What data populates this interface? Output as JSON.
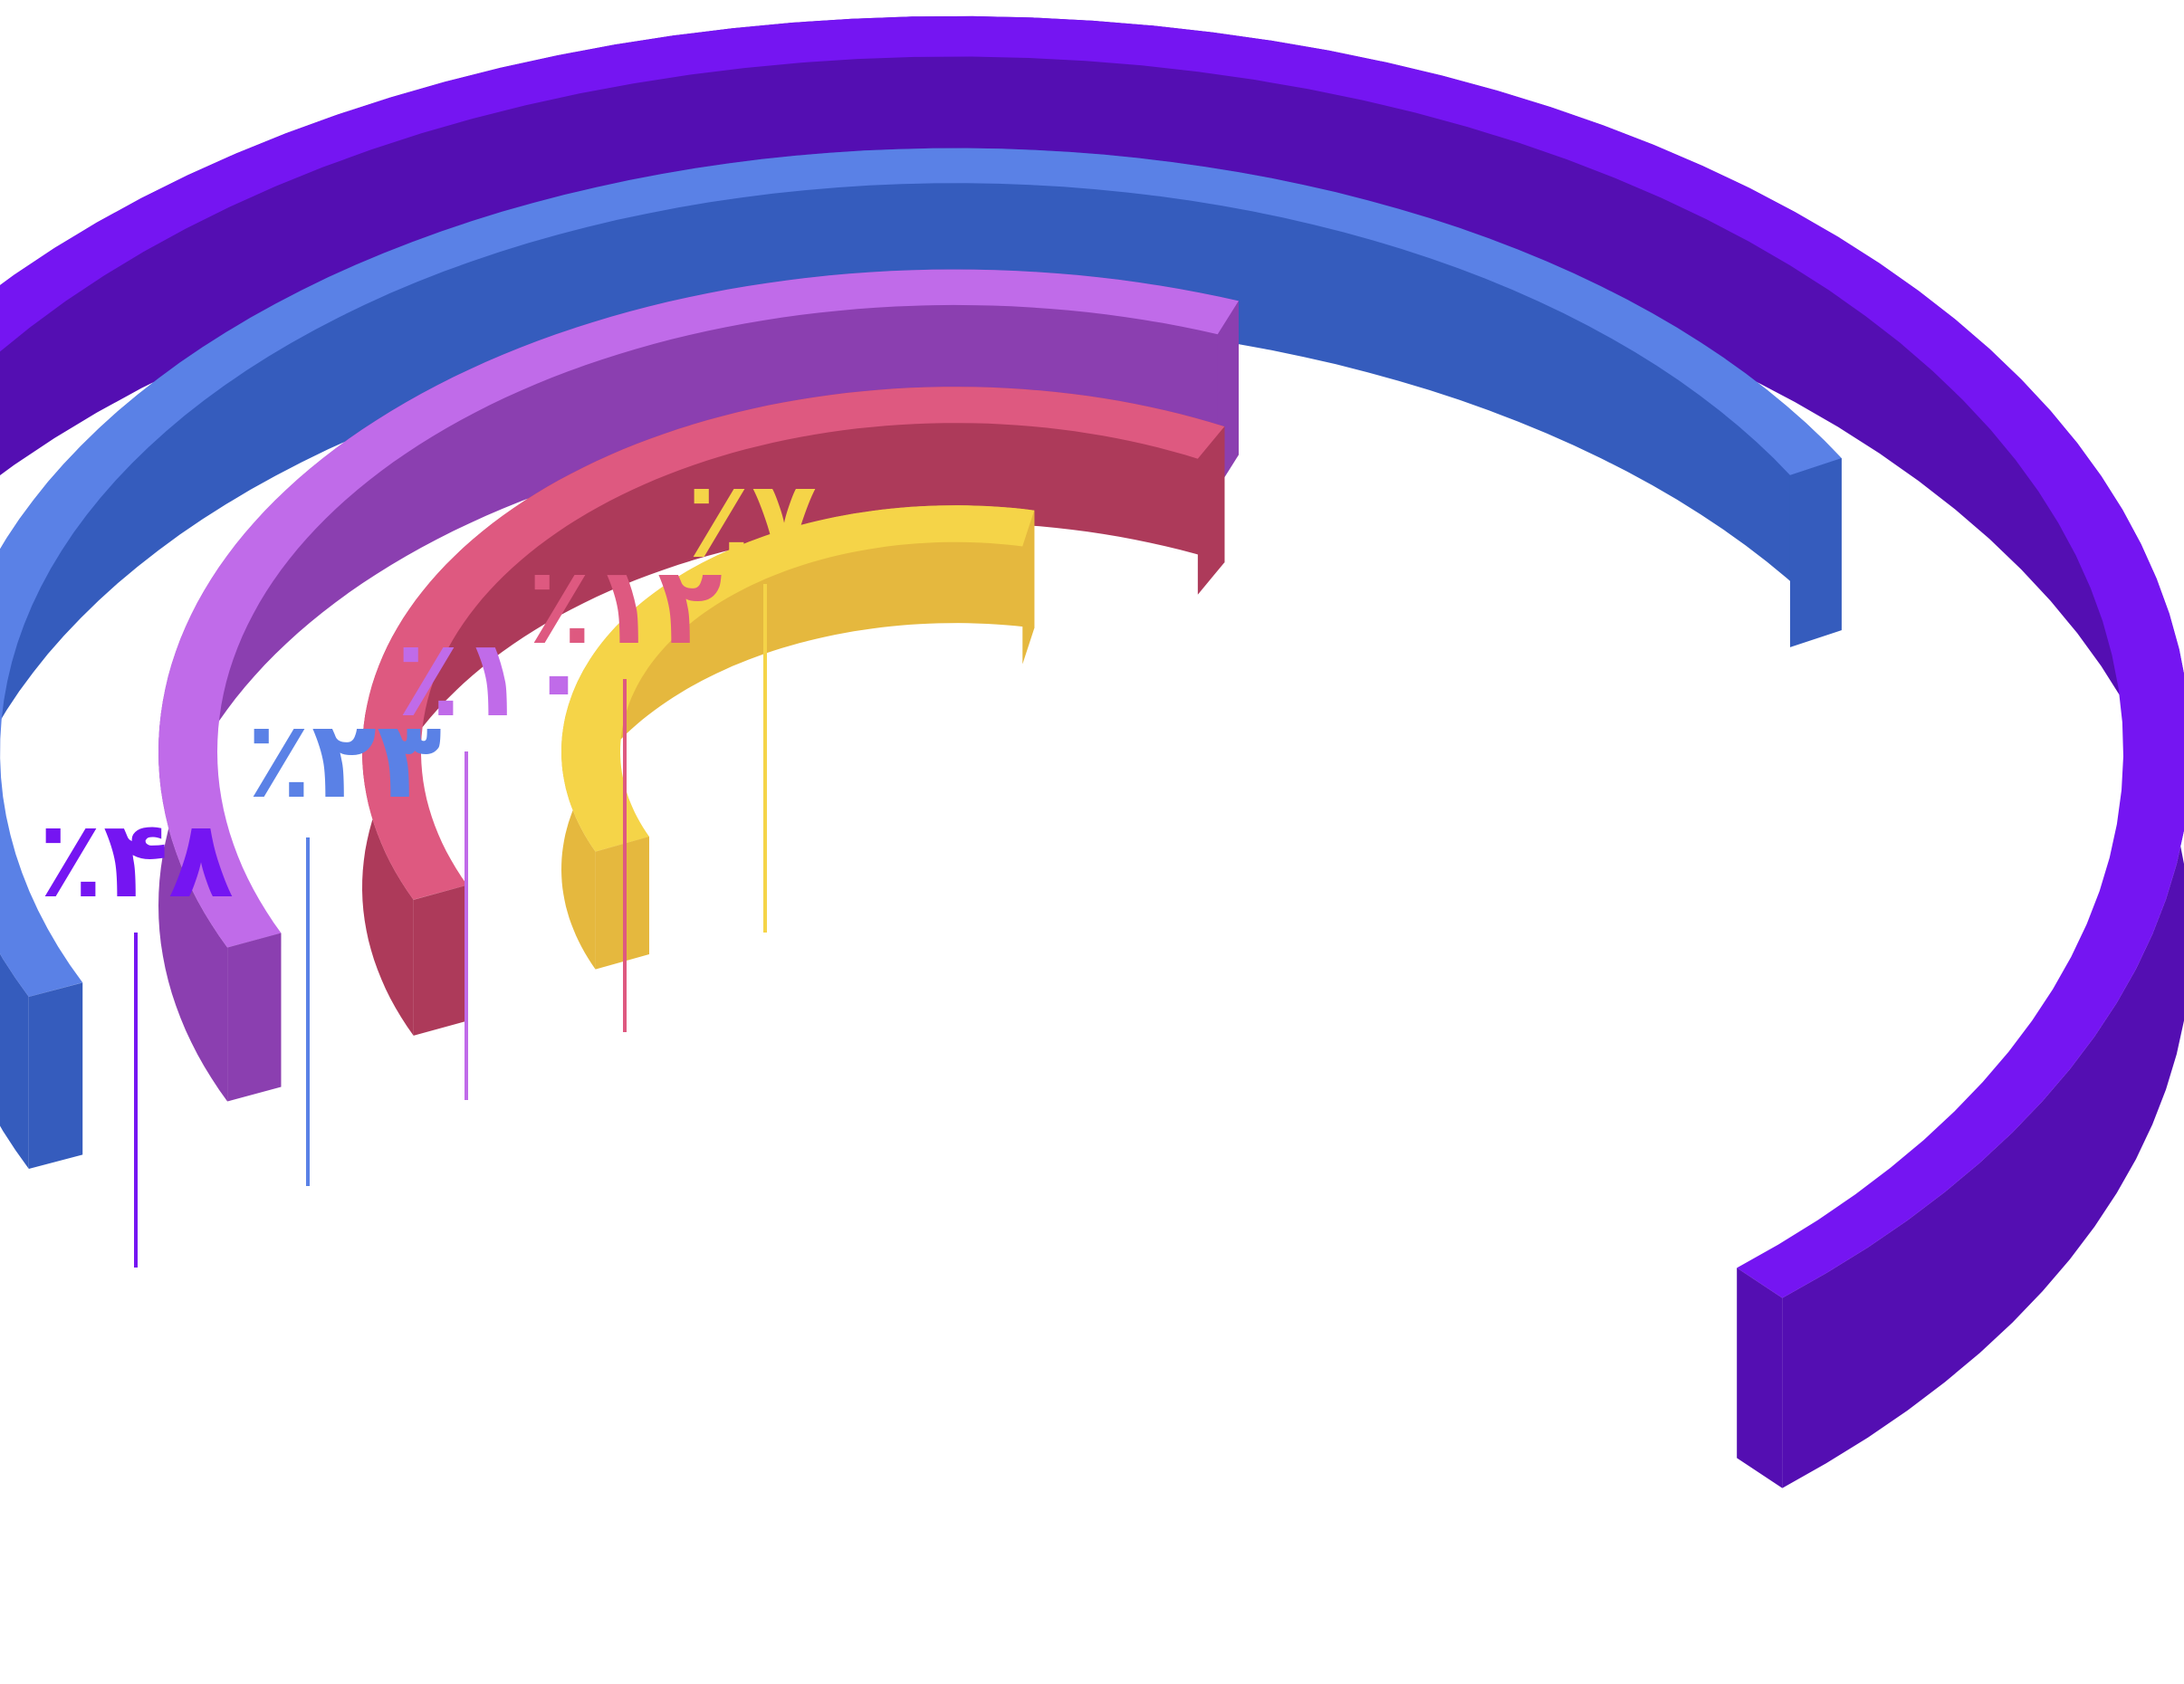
{
  "chart_data": {
    "type": "radial-bar",
    "categories": [],
    "series": [
      {
        "value": 48,
        "label": "٪۴۸",
        "color": "#7515f2",
        "side": "#540eb2"
      },
      {
        "value": 23,
        "label": "٪۲۳",
        "color": "#5a81e6",
        "side": "#355cbd"
      },
      {
        "value": 10,
        "label": "٪۱۰",
        "color": "#c06be9",
        "side": "#8b3fb0"
      },
      {
        "value": 12,
        "label": "٪۱۲",
        "color": "#de5980",
        "side": "#ad3a5a"
      },
      {
        "value": 7,
        "label": "٪۷",
        "color": "#f5d448",
        "side": "#e5b83e"
      }
    ],
    "unit": "%",
    "grid": false,
    "legend": "none",
    "background": "#ffffff"
  }
}
